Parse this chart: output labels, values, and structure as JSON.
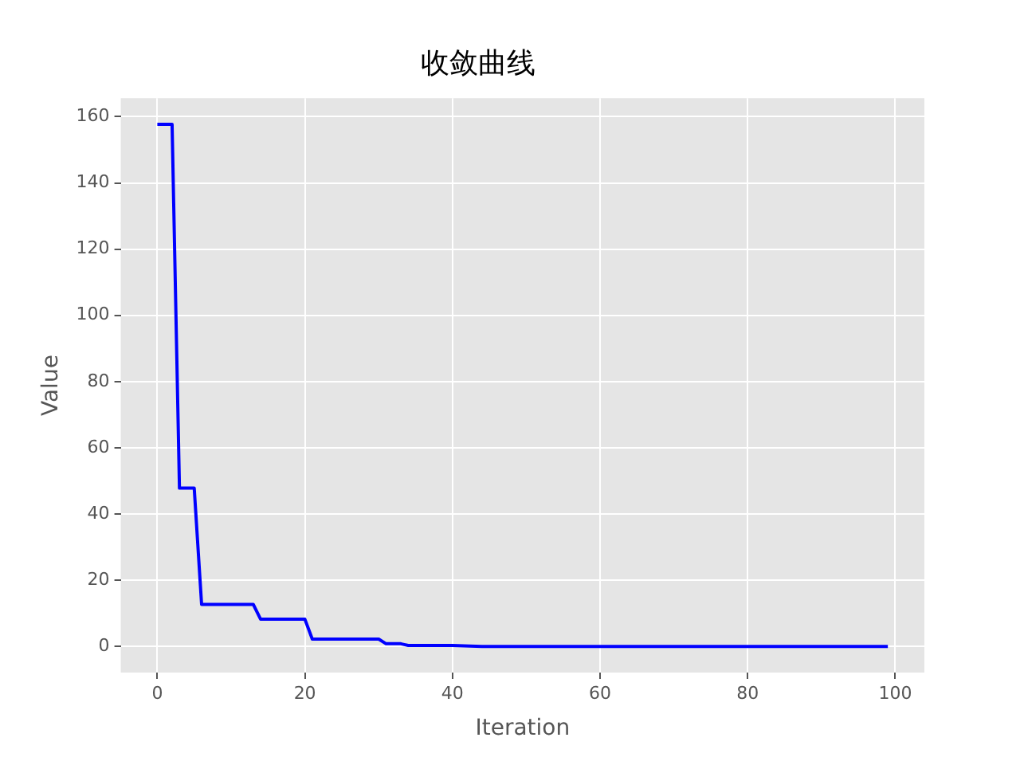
{
  "chart_data": {
    "type": "line",
    "title": "收敛曲线",
    "xlabel": "Iteration",
    "ylabel": "Value",
    "x": [
      0,
      2,
      3,
      5,
      6,
      13,
      14,
      20,
      21,
      30,
      31,
      33,
      34,
      40,
      44,
      99
    ],
    "series": [
      {
        "color": "#0000ff",
        "values": [
          157.7,
          157.7,
          47.8,
          47.8,
          12.7,
          12.7,
          8.2,
          8.2,
          2.2,
          2.2,
          0.8,
          0.8,
          0.3,
          0.3,
          0,
          0
        ]
      }
    ],
    "xlim": [
      -4.95,
      103.95
    ],
    "xticks": [
      0,
      20,
      40,
      60,
      80,
      100
    ],
    "ylim": [
      -7.9,
      165.6
    ],
    "yticks": [
      0,
      20,
      40,
      60,
      80,
      100,
      120,
      140,
      160
    ],
    "grid": true,
    "legend": false,
    "marker": "none",
    "line_style": "solid"
  }
}
